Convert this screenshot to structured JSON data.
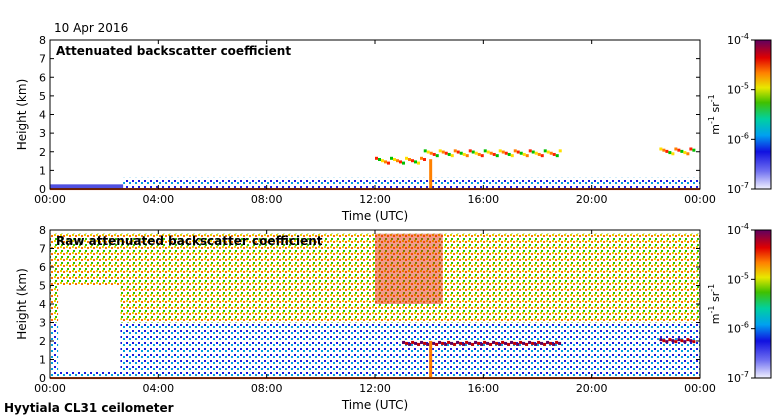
{
  "page": {
    "date": "10 Apr 2016",
    "footer": "Hyytiala CL31 ceilometer"
  },
  "chart_data": [
    {
      "type": "heatmap",
      "title": "Attenuated backscatter coefficient",
      "xlabel": "Time (UTC)",
      "ylabel": "Height (km)",
      "xticks": [
        "00:00",
        "04:00",
        "08:00",
        "12:00",
        "16:00",
        "20:00",
        "00:00"
      ],
      "xlim": [
        0,
        24
      ],
      "yticks": [
        0,
        1,
        2,
        3,
        4,
        5,
        6,
        7,
        8
      ],
      "ylim": [
        0,
        8
      ],
      "colorbar": {
        "label": "m-1 sr-1",
        "scale": "log",
        "range": [
          1e-07,
          0.0001
        ],
        "ticks": [
          "10-4",
          "10-5",
          "10-6",
          "10-7"
        ]
      },
      "features": {
        "surface_layer_top_km": 0.6,
        "surface_layer_start_h": 2.7,
        "cloud_base_segments": [
          {
            "start_h": 12.0,
            "end_h": 13.8,
            "height_km": 1.6
          },
          {
            "start_h": 13.8,
            "end_h": 18.8,
            "height_km": 2.0
          },
          {
            "start_h": 22.5,
            "end_h": 23.8,
            "height_km": 2.1
          }
        ],
        "precip_h": 14.0
      }
    },
    {
      "type": "heatmap",
      "title": "Raw attenuated backscatter coefficient",
      "xlabel": "Time (UTC)",
      "ylabel": "Height (km)",
      "xticks": [
        "00:00",
        "04:00",
        "08:00",
        "12:00",
        "16:00",
        "20:00",
        "00:00"
      ],
      "xlim": [
        0,
        24
      ],
      "yticks": [
        0,
        1,
        2,
        3,
        4,
        5,
        6,
        7,
        8
      ],
      "ylim": [
        0,
        8
      ],
      "colorbar": {
        "label": "m-1 sr-1",
        "scale": "log",
        "range": [
          1e-07,
          0.0001
        ],
        "ticks": [
          "10-4",
          "10-5",
          "10-6",
          "10-7"
        ]
      },
      "features": {
        "noise_top_km": 7.8,
        "clear_region": {
          "start_h": 0.3,
          "end_h": 2.6,
          "bottom_km": 0.4,
          "top_km": 5.0
        },
        "cloud_base_segments": [
          {
            "start_h": 13.0,
            "end_h": 18.8,
            "height_km": 1.95
          },
          {
            "start_h": 22.5,
            "end_h": 23.8,
            "height_km": 2.1
          }
        ],
        "precip_h": 14.0
      }
    }
  ]
}
